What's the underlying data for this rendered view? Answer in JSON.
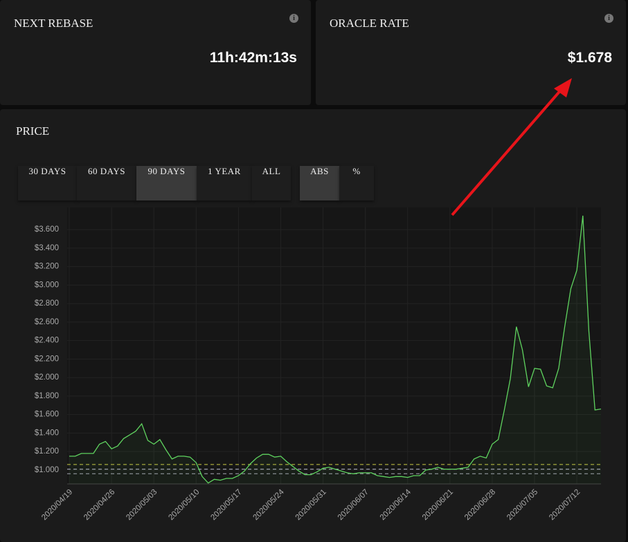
{
  "cards": [
    {
      "title": "NEXT REBASE",
      "value": "11h:42m:13s"
    },
    {
      "title": "ORACLE RATE",
      "value": "$1.678"
    }
  ],
  "price_panel": {
    "title": "PRICE",
    "range_buttons": [
      {
        "label": "30 DAYS",
        "active": false
      },
      {
        "label": "60 DAYS",
        "active": false
      },
      {
        "label": "90 DAYS",
        "active": true
      },
      {
        "label": "1 YEAR",
        "active": false
      },
      {
        "label": "ALL",
        "active": false
      }
    ],
    "mode_buttons": [
      {
        "label": "ABS",
        "active": true
      },
      {
        "label": "%",
        "active": false
      }
    ]
  },
  "chart_data": {
    "type": "line",
    "color": "#5fd35f",
    "grid": true,
    "x": [
      "2020/04/19",
      "2020/04/20",
      "2020/04/21",
      "2020/04/22",
      "2020/04/23",
      "2020/04/24",
      "2020/04/25",
      "2020/04/26",
      "2020/04/27",
      "2020/04/28",
      "2020/04/29",
      "2020/04/30",
      "2020/05/01",
      "2020/05/02",
      "2020/05/03",
      "2020/05/04",
      "2020/05/05",
      "2020/05/06",
      "2020/05/07",
      "2020/05/08",
      "2020/05/09",
      "2020/05/10",
      "2020/05/11",
      "2020/05/12",
      "2020/05/13",
      "2020/05/14",
      "2020/05/15",
      "2020/05/16",
      "2020/05/17",
      "2020/05/18",
      "2020/05/19",
      "2020/05/20",
      "2020/05/21",
      "2020/05/22",
      "2020/05/23",
      "2020/05/24",
      "2020/05/25",
      "2020/05/26",
      "2020/05/27",
      "2020/05/28",
      "2020/05/29",
      "2020/05/30",
      "2020/05/31",
      "2020/06/01",
      "2020/06/02",
      "2020/06/03",
      "2020/06/04",
      "2020/06/05",
      "2020/06/06",
      "2020/06/07",
      "2020/06/08",
      "2020/06/09",
      "2020/06/10",
      "2020/06/11",
      "2020/06/12",
      "2020/06/13",
      "2020/06/14",
      "2020/06/15",
      "2020/06/16",
      "2020/06/17",
      "2020/06/18",
      "2020/06/19",
      "2020/06/20",
      "2020/06/21",
      "2020/06/22",
      "2020/06/23",
      "2020/06/24",
      "2020/06/25",
      "2020/06/26",
      "2020/06/27",
      "2020/06/28",
      "2020/06/29",
      "2020/06/30",
      "2020/07/01",
      "2020/07/02",
      "2020/07/03",
      "2020/07/04",
      "2020/07/05",
      "2020/07/06",
      "2020/07/07",
      "2020/07/08",
      "2020/07/09",
      "2020/07/10",
      "2020/07/11",
      "2020/07/12",
      "2020/07/13",
      "2020/07/14",
      "2020/07/15",
      "2020/07/16"
    ],
    "values": [
      1.15,
      1.15,
      1.18,
      1.18,
      1.18,
      1.28,
      1.31,
      1.23,
      1.26,
      1.34,
      1.38,
      1.42,
      1.5,
      1.32,
      1.28,
      1.33,
      1.22,
      1.12,
      1.15,
      1.15,
      1.14,
      1.08,
      0.93,
      0.86,
      0.9,
      0.89,
      0.91,
      0.91,
      0.94,
      0.99,
      1.07,
      1.13,
      1.17,
      1.17,
      1.14,
      1.15,
      1.09,
      1.04,
      0.99,
      0.95,
      0.95,
      0.98,
      1.02,
      1.03,
      1.01,
      0.99,
      0.97,
      0.96,
      0.97,
      0.97,
      0.97,
      0.94,
      0.93,
      0.92,
      0.93,
      0.93,
      0.92,
      0.94,
      0.94,
      1.0,
      1.01,
      1.03,
      1.01,
      1.01,
      1.01,
      1.02,
      1.03,
      1.12,
      1.15,
      1.13,
      1.28,
      1.33,
      1.65,
      1.99,
      2.55,
      2.3,
      1.9,
      2.1,
      2.09,
      1.91,
      1.89,
      2.1,
      2.55,
      2.96,
      3.16,
      3.75,
      2.5,
      1.65,
      1.66
    ],
    "xlim": [
      "2020/04/19",
      "2020/07/16"
    ],
    "xticks": [
      "2020/04/19",
      "2020/04/26",
      "2020/05/03",
      "2020/05/10",
      "2020/05/17",
      "2020/05/24",
      "2020/05/31",
      "2020/06/07",
      "2020/06/14",
      "2020/06/21",
      "2020/06/28",
      "2020/07/05",
      "2020/07/12"
    ],
    "ylim": [
      0.85,
      3.84
    ],
    "yticks": [
      {
        "value": 1.0,
        "label": "$1.000"
      },
      {
        "value": 1.2,
        "label": "$1.200"
      },
      {
        "value": 1.4,
        "label": "$1.400"
      },
      {
        "value": 1.6,
        "label": "$1.600"
      },
      {
        "value": 1.8,
        "label": "$1.800"
      },
      {
        "value": 2.0,
        "label": "$2.000"
      },
      {
        "value": 2.2,
        "label": "$2.200"
      },
      {
        "value": 2.4,
        "label": "$2.400"
      },
      {
        "value": 2.6,
        "label": "$2.600"
      },
      {
        "value": 2.8,
        "label": "$2.800"
      },
      {
        "value": 3.0,
        "label": "$3.000"
      },
      {
        "value": 3.2,
        "label": "$3.200"
      },
      {
        "value": 3.4,
        "label": "$3.400"
      },
      {
        "value": 3.6,
        "label": "$3.600"
      }
    ],
    "reference_lines": [
      {
        "value": 1.06,
        "color": "#a8a83a"
      },
      {
        "value": 1.01,
        "color": "#9a9aa8"
      },
      {
        "value": 0.96,
        "color": "#8a8a95"
      }
    ]
  }
}
